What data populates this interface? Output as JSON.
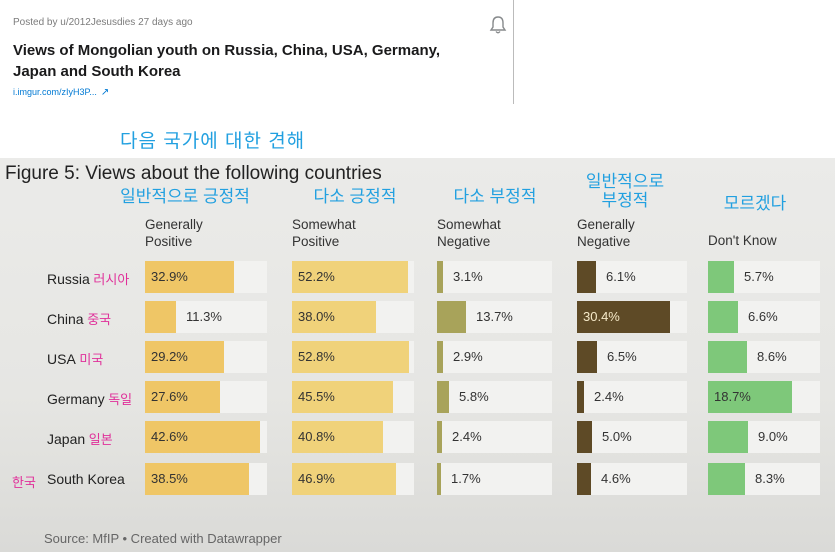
{
  "post": {
    "meta": "Posted by u/2012Jesusdies 27 days ago",
    "title": "Views of Mongolian youth on Russia, China, USA, Germany, Japan and South Korea",
    "link": "i.imgur.com/zIyH3P...",
    "link_icon": "external-link-icon",
    "bell_icon": "bell-icon"
  },
  "korean_header": "다음 국가에 대한 견해",
  "chart_data": {
    "type": "bar",
    "title": "Figure 5: Views about the following countries",
    "source": "Source: MfIP • Created with Datawrapper",
    "categories": [
      "Russia",
      "China",
      "USA",
      "Germany",
      "Japan",
      "South Korea"
    ],
    "categories_kr": [
      "러시아",
      "중국",
      "미국",
      "독일",
      "일본",
      "한국"
    ],
    "series": [
      {
        "name": "Generally Positive",
        "name_line1": "Generally",
        "name_line2": "Positive",
        "kr_line1": "일반적으로 긍정적",
        "kr_line2": "",
        "color": "#efc666",
        "values": [
          32.9,
          11.3,
          29.2,
          27.6,
          42.6,
          38.5
        ],
        "labels": [
          "32.9%",
          "11.3%",
          "29.2%",
          "27.6%",
          "42.6%",
          "38.5%"
        ]
      },
      {
        "name": "Somewhat Positive",
        "name_line1": "Somewhat",
        "name_line2": "Positive",
        "kr_line1": "다소 긍정적",
        "kr_line2": "",
        "color": "#f0d27a",
        "values": [
          52.2,
          38.0,
          52.8,
          45.5,
          40.8,
          46.9
        ],
        "labels": [
          "52.2%",
          "38.0%",
          "52.8%",
          "45.5%",
          "40.8%",
          "46.9%"
        ]
      },
      {
        "name": "Somewhat Negative",
        "name_line1": "Somewhat",
        "name_line2": "Negative",
        "kr_line1": "다소 부정적",
        "kr_line2": "",
        "color": "#a8a35a",
        "values": [
          3.1,
          13.7,
          2.9,
          5.8,
          2.4,
          1.7
        ],
        "labels": [
          "3.1%",
          "13.7%",
          "2.9%",
          "5.8%",
          "2.4%",
          "1.7%"
        ]
      },
      {
        "name": "Generally Negative",
        "name_line1": "Generally",
        "name_line2": "Negative",
        "kr_line1": "일반적으로",
        "kr_line2": "부정적",
        "color": "#5e4a26",
        "values": [
          6.1,
          30.4,
          6.5,
          2.4,
          5.0,
          4.6
        ],
        "labels": [
          "6.1%",
          "30.4%",
          "6.5%",
          "2.4%",
          "5.0%",
          "4.6%"
        ]
      },
      {
        "name": "Don't Know",
        "name_line1": "Don't Know",
        "name_line2": "",
        "kr_line1": "모르겠다",
        "kr_line2": "",
        "color": "#7ec87a",
        "values": [
          5.7,
          6.6,
          8.6,
          18.7,
          9.0,
          8.3
        ],
        "labels": [
          "5.7%",
          "6.6%",
          "8.6%",
          "18.7%",
          "9.0%",
          "8.3%"
        ]
      }
    ]
  }
}
